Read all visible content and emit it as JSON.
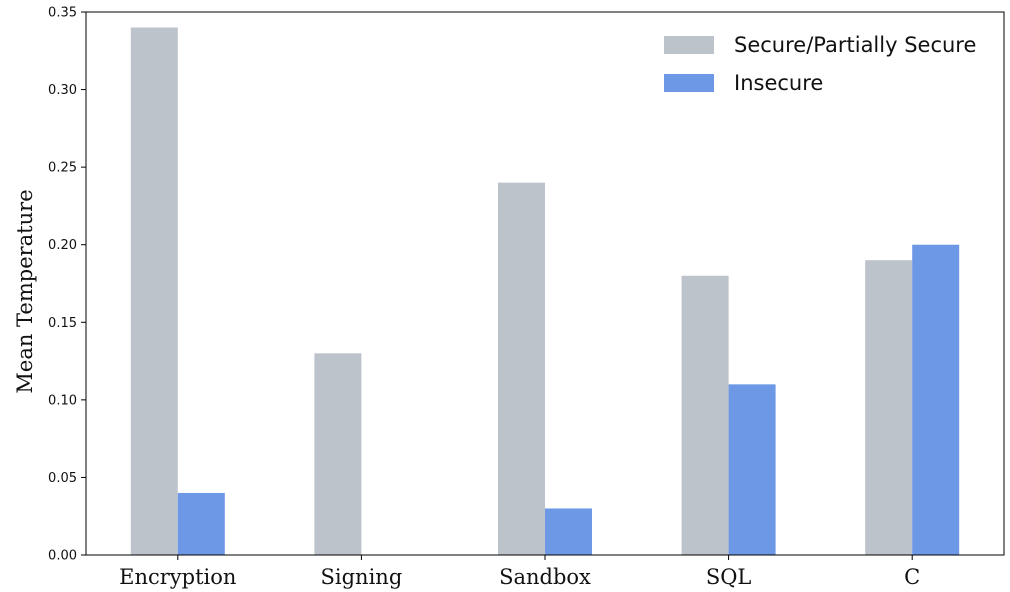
{
  "chart_data": {
    "type": "bar",
    "title": "",
    "xlabel": "",
    "ylabel": "Mean Temperature",
    "categories": [
      "Encryption",
      "Signing",
      "Sandbox",
      "SQL",
      "C"
    ],
    "series": [
      {
        "name": "Secure/Partially Secure",
        "color": "#bcc3cb",
        "values": [
          0.34,
          0.13,
          0.24,
          0.18,
          0.19
        ]
      },
      {
        "name": "Insecure",
        "color": "#6d98e6",
        "values": [
          0.04,
          0.0,
          0.03,
          0.11,
          0.2
        ]
      }
    ],
    "ylim": [
      0,
      0.35
    ],
    "yticks": [
      0.0,
      0.05,
      0.1,
      0.15,
      0.2,
      0.25,
      0.3,
      0.35
    ],
    "ytick_labels": [
      "0.00",
      "0.05",
      "0.10",
      "0.15",
      "0.20",
      "0.25",
      "0.30",
      "0.35"
    ],
    "grid": false,
    "legend_position": "top-right"
  }
}
